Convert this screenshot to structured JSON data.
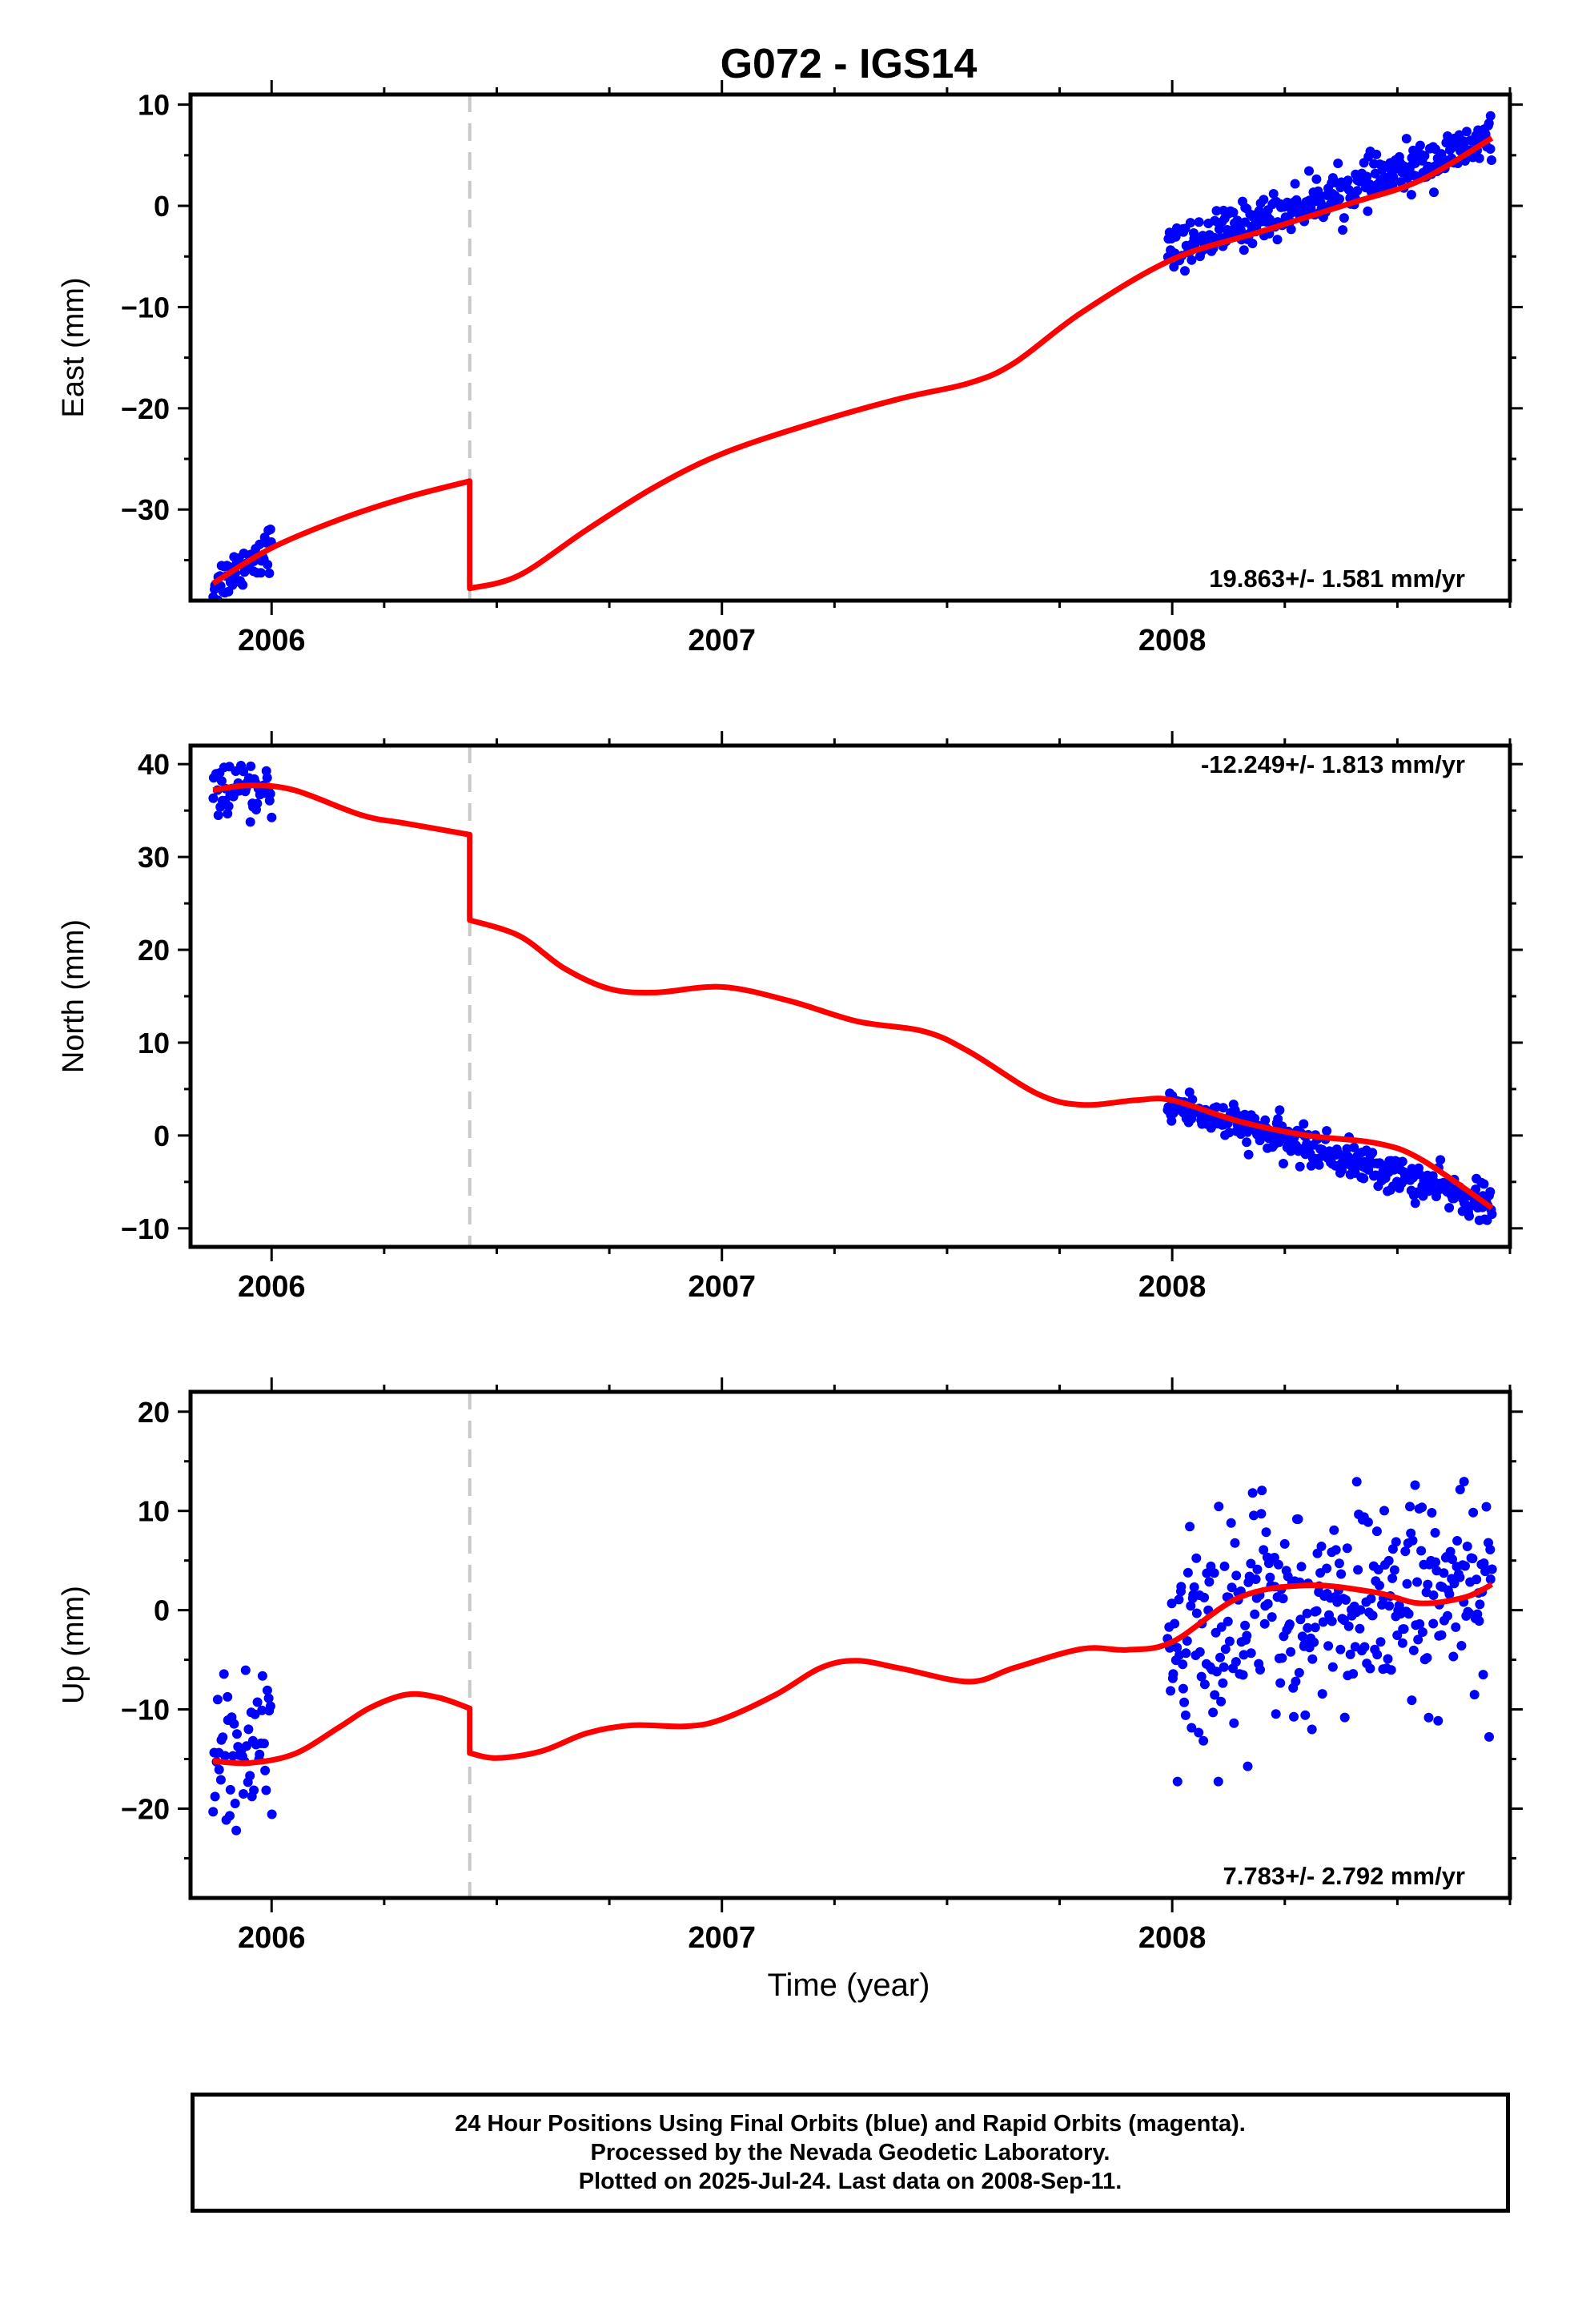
{
  "figure": {
    "title": "G072 - IGS14",
    "xlabel": "Time (year)",
    "caption": [
      "24 Hour Positions Using Final Orbits (blue) and Rapid Orbits (magenta).",
      "Processed by the Nevada Geodetic Laboratory.",
      "Plotted on 2025-Jul-24. Last data on 2008-Sep-11."
    ],
    "colors": {
      "final_orbits": "#0000ff",
      "model": "#ff0000",
      "break_line": "#c8c8c8"
    }
  },
  "chart_data": [
    {
      "type": "scatter",
      "panel": "east",
      "ylabel": "East (mm)",
      "rate_label": "19.863+/- 1.581 mm/yr",
      "xlim": [
        2005.82,
        2008.75
      ],
      "ylim": [
        -39,
        11
      ],
      "xticks": [
        2006,
        2007,
        2008
      ],
      "yticks": [
        10,
        0,
        -10,
        -20,
        -30
      ],
      "ytick_labels": [
        "10",
        "0",
        "−10",
        "−20",
        "−30"
      ],
      "break_epoch": 2006.44,
      "clusters": [
        {
          "x_range": [
            2005.87,
            2006.0
          ],
          "center_start": -37.5,
          "center_end": -33.5,
          "spread": 2.0,
          "count": 55
        },
        {
          "x_range": [
            2007.99,
            2008.71
          ],
          "center_start": -4.5,
          "center_end": 6.5,
          "spread": 2.0,
          "count": 330
        }
      ],
      "model": [
        [
          2005.87,
          -37.3
        ],
        [
          2006.0,
          -33.8
        ],
        [
          2006.15,
          -31.0
        ],
        [
          2006.3,
          -28.8
        ],
        [
          2006.44,
          -27.2
        ],
        [
          2006.44,
          -37.8
        ],
        [
          2006.55,
          -36.5
        ],
        [
          2006.7,
          -32.0
        ],
        [
          2006.85,
          -27.8
        ],
        [
          2007.0,
          -24.5
        ],
        [
          2007.2,
          -21.5
        ],
        [
          2007.4,
          -19.0
        ],
        [
          2007.55,
          -17.5
        ],
        [
          2007.65,
          -15.5
        ],
        [
          2007.8,
          -10.5
        ],
        [
          2008.0,
          -5.3
        ],
        [
          2008.2,
          -2.5
        ],
        [
          2008.4,
          0.3
        ],
        [
          2008.55,
          2.5
        ],
        [
          2008.71,
          6.7
        ]
      ]
    },
    {
      "type": "scatter",
      "panel": "north",
      "ylabel": "North (mm)",
      "rate_label": "-12.249+/- 1.813 mm/yr",
      "xlim": [
        2005.82,
        2008.75
      ],
      "ylim": [
        -12,
        42
      ],
      "xticks": [
        2006,
        2007,
        2008
      ],
      "yticks": [
        40,
        30,
        20,
        10,
        0,
        -10
      ],
      "ytick_labels": [
        "40",
        "30",
        "20",
        "10",
        "0",
        "−10"
      ],
      "break_epoch": 2006.44,
      "clusters": [
        {
          "x_range": [
            2005.87,
            2006.0
          ],
          "center_start": 37.5,
          "center_end": 36.5,
          "spread": 2.2,
          "count": 55
        },
        {
          "x_range": [
            2007.99,
            2008.71
          ],
          "center_start": 3.5,
          "center_end": -7.5,
          "spread": 1.8,
          "count": 330
        }
      ],
      "model": [
        [
          2005.87,
          37.2
        ],
        [
          2005.95,
          37.7
        ],
        [
          2006.05,
          37.2
        ],
        [
          2006.2,
          34.5
        ],
        [
          2006.3,
          33.6
        ],
        [
          2006.44,
          32.4
        ],
        [
          2006.44,
          23.2
        ],
        [
          2006.55,
          21.5
        ],
        [
          2006.65,
          18.0
        ],
        [
          2006.75,
          15.8
        ],
        [
          2006.85,
          15.4
        ],
        [
          2007.0,
          16.0
        ],
        [
          2007.15,
          14.5
        ],
        [
          2007.3,
          12.3
        ],
        [
          2007.45,
          11.2
        ],
        [
          2007.55,
          9.0
        ],
        [
          2007.7,
          4.5
        ],
        [
          2007.8,
          3.3
        ],
        [
          2007.92,
          3.8
        ],
        [
          2008.0,
          3.8
        ],
        [
          2008.15,
          1.5
        ],
        [
          2008.3,
          0.0
        ],
        [
          2008.45,
          -0.8
        ],
        [
          2008.55,
          -2.5
        ],
        [
          2008.71,
          -7.8
        ]
      ]
    },
    {
      "type": "scatter",
      "panel": "up",
      "ylabel": "Up (mm)",
      "rate_label": "7.783+/- 2.792 mm/yr",
      "xlim": [
        2005.82,
        2008.75
      ],
      "ylim": [
        -29,
        22
      ],
      "xticks": [
        2006,
        2007,
        2008
      ],
      "yticks": [
        20,
        10,
        0,
        -10,
        -20
      ],
      "ytick_labels": [
        "20",
        "10",
        "0",
        "−10",
        "−20"
      ],
      "break_epoch": 2006.44,
      "clusters": [
        {
          "x_range": [
            2005.87,
            2006.0
          ],
          "center_start": -16.0,
          "center_end": -11.0,
          "spread": 5.0,
          "count": 55
        },
        {
          "x_range": [
            2007.99,
            2008.71
          ],
          "center_start": -2.0,
          "center_end": 2.5,
          "spread": 6.0,
          "count": 330
        }
      ],
      "model": [
        [
          2005.87,
          -15.2
        ],
        [
          2005.95,
          -15.4
        ],
        [
          2006.05,
          -14.5
        ],
        [
          2006.15,
          -11.8
        ],
        [
          2006.22,
          -9.8
        ],
        [
          2006.3,
          -8.5
        ],
        [
          2006.37,
          -8.8
        ],
        [
          2006.44,
          -9.9
        ],
        [
          2006.44,
          -14.4
        ],
        [
          2006.5,
          -14.9
        ],
        [
          2006.6,
          -14.2
        ],
        [
          2006.7,
          -12.4
        ],
        [
          2006.8,
          -11.6
        ],
        [
          2006.92,
          -11.7
        ],
        [
          2007.0,
          -11.0
        ],
        [
          2007.12,
          -8.5
        ],
        [
          2007.22,
          -5.8
        ],
        [
          2007.3,
          -5.1
        ],
        [
          2007.4,
          -5.9
        ],
        [
          2007.55,
          -7.2
        ],
        [
          2007.65,
          -5.8
        ],
        [
          2007.8,
          -3.9
        ],
        [
          2007.9,
          -4.0
        ],
        [
          2008.0,
          -3.2
        ],
        [
          2008.15,
          1.3
        ],
        [
          2008.3,
          2.5
        ],
        [
          2008.45,
          1.8
        ],
        [
          2008.55,
          0.7
        ],
        [
          2008.65,
          1.3
        ],
        [
          2008.71,
          2.6
        ]
      ]
    }
  ]
}
